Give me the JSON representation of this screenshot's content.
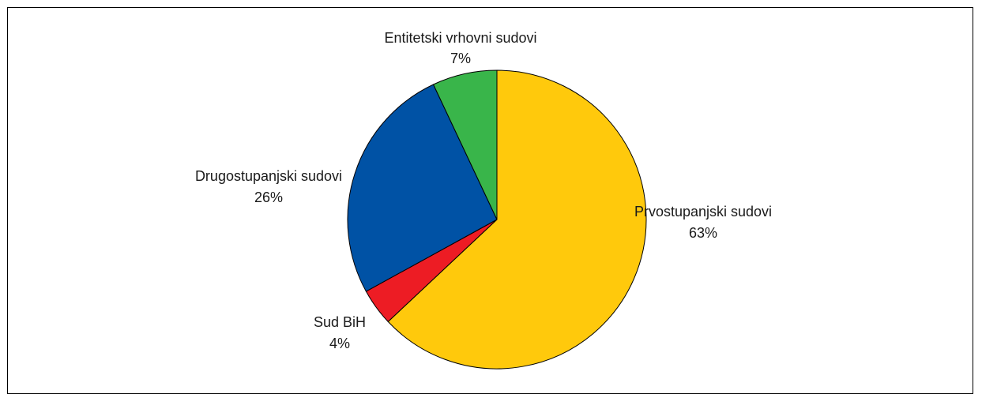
{
  "chart_data": {
    "type": "pie",
    "start_angle_deg": 0,
    "direction": "clockwise",
    "slices": [
      {
        "name": "Prvostupanjski sudovi",
        "value": 63,
        "label": "63%",
        "color": "#FFC90C"
      },
      {
        "name": "Sud BiH",
        "value": 4,
        "label": "4%",
        "color": "#ED1C24"
      },
      {
        "name": "Drugostupanjski sudovi",
        "value": 26,
        "label": "26%",
        "color": "#0052A5"
      },
      {
        "name": "Entitetski vrhovni sudovi",
        "value": 7,
        "label": "7%",
        "color": "#39B54A"
      }
    ],
    "legend": "none",
    "grid": false
  }
}
